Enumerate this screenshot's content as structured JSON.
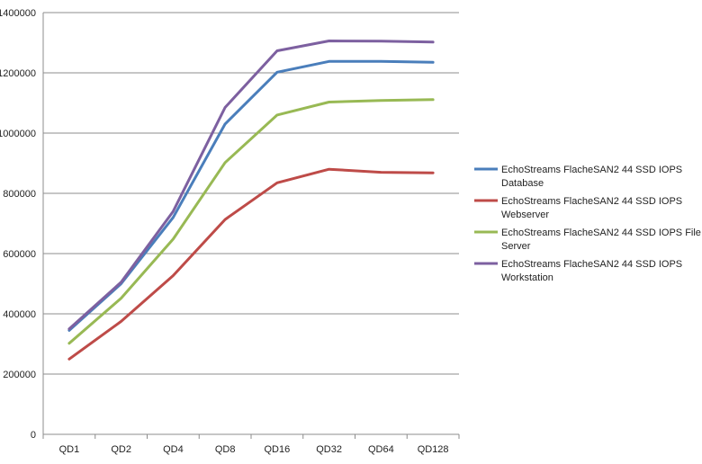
{
  "chart_data": {
    "type": "line",
    "title": "",
    "xlabel": "",
    "ylabel": "",
    "categories": [
      "QD1",
      "QD2",
      "QD4",
      "QD8",
      "QD16",
      "QD32",
      "QD64",
      "QD128"
    ],
    "ylim": [
      0,
      1400000
    ],
    "yticks": [
      0,
      200000,
      400000,
      600000,
      800000,
      1000000,
      1200000,
      1400000
    ],
    "ytick_labels": [
      "0",
      "200000",
      "400000",
      "600000",
      "800000",
      "1000000",
      "1200000",
      "1400000"
    ],
    "grid": true,
    "legend_position": "right",
    "series": [
      {
        "name": "EchoStreams FlacheSAN2 44 SSD IOPS Database",
        "legend_lines": [
          "EchoStreams FlacheSAN2 44 SSD IOPS",
          "Database"
        ],
        "color": "#4A7EBB",
        "values": [
          345000,
          500000,
          720000,
          1030000,
          1202000,
          1238000,
          1238000,
          1235000
        ]
      },
      {
        "name": "EchoStreams FlacheSAN2 44 SSD IOPS Webserver",
        "legend_lines": [
          "EchoStreams FlacheSAN2 44 SSD IOPS",
          "Webserver"
        ],
        "color": "#BE4B48",
        "values": [
          250000,
          375000,
          527000,
          713000,
          835000,
          880000,
          870000,
          868000
        ]
      },
      {
        "name": "EchoStreams FlacheSAN2 44 SSD IOPS File Server",
        "legend_lines": [
          "EchoStreams FlacheSAN2 44 SSD IOPS File",
          "Server"
        ],
        "color": "#98B954",
        "values": [
          302000,
          452000,
          648000,
          902000,
          1060000,
          1103000,
          1108000,
          1111000
        ]
      },
      {
        "name": "EchoStreams FlacheSAN2 44 SSD IOPS Workstation",
        "legend_lines": [
          "EchoStreams FlacheSAN2 44 SSD IOPS",
          "Workstation"
        ],
        "color": "#7D60A0",
        "values": [
          350000,
          505000,
          740000,
          1085000,
          1273000,
          1306000,
          1305000,
          1302000
        ]
      }
    ]
  }
}
